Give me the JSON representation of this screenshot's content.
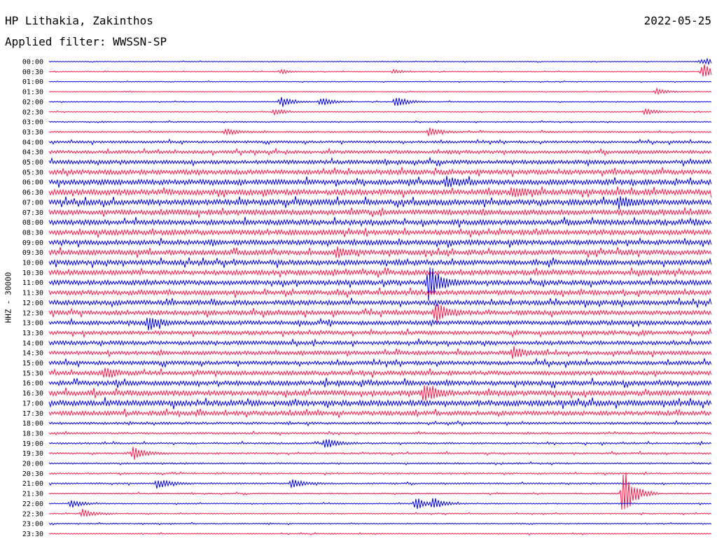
{
  "header": {
    "station": "HP Lithakia, Zakinthos",
    "date": "2022-05-25",
    "filter": "Applied filter: WWSSN-SP"
  },
  "axis": {
    "ylabel": "HHZ - 30000"
  },
  "colors": {
    "even": "#0000ee",
    "odd": "#ff1a4a"
  },
  "chart_data": {
    "type": "line",
    "title": "HP Lithakia, Zakinthos",
    "subtitle": "Applied filter: WWSSN-SP",
    "ylabel": "HHZ - 30000",
    "row_labels": [
      "00:00",
      "00:30",
      "01:00",
      "01:30",
      "02:00",
      "02:30",
      "03:00",
      "03:30",
      "04:00",
      "04:30",
      "05:00",
      "05:30",
      "06:00",
      "06:30",
      "07:00",
      "07:30",
      "08:00",
      "08:30",
      "09:00",
      "09:30",
      "10:00",
      "10:30",
      "11:00",
      "11:30",
      "12:00",
      "12:30",
      "13:00",
      "13:30",
      "14:00",
      "14:30",
      "15:00",
      "15:30",
      "16:00",
      "16:30",
      "17:00",
      "17:30",
      "18:00",
      "18:30",
      "19:00",
      "19:30",
      "20:00",
      "20:30",
      "21:00",
      "21:30",
      "22:00",
      "22:30",
      "23:00",
      "23:30"
    ],
    "noise_level": [
      0.4,
      0.4,
      0.4,
      0.4,
      0.5,
      0.5,
      0.6,
      0.8,
      1.2,
      1.6,
      2.0,
      2.4,
      2.6,
      2.8,
      2.8,
      2.6,
      2.6,
      2.6,
      2.5,
      2.5,
      2.5,
      2.5,
      2.4,
      2.4,
      2.4,
      2.3,
      2.2,
      2.0,
      2.0,
      2.0,
      2.0,
      2.2,
      2.4,
      2.6,
      2.8,
      2.2,
      1.2,
      1.0,
      0.9,
      0.9,
      0.8,
      0.8,
      0.8,
      0.7,
      0.6,
      0.6,
      0.6,
      0.6
    ],
    "events": [
      {
        "row": 0,
        "minute": 29.8,
        "amp": 3
      },
      {
        "row": 0,
        "minute": 29.5,
        "amp": 3
      },
      {
        "row": 1,
        "minute": 10.5,
        "amp": 3
      },
      {
        "row": 1,
        "minute": 15.6,
        "amp": 3
      },
      {
        "row": 1,
        "minute": 29.6,
        "amp": 12
      },
      {
        "row": 3,
        "minute": 27.5,
        "amp": 5
      },
      {
        "row": 4,
        "minute": 10.5,
        "amp": 8
      },
      {
        "row": 4,
        "minute": 12.3,
        "amp": 7
      },
      {
        "row": 4,
        "minute": 15.7,
        "amp": 9
      },
      {
        "row": 5,
        "minute": 10.2,
        "amp": 4
      },
      {
        "row": 5,
        "minute": 27.0,
        "amp": 5
      },
      {
        "row": 7,
        "minute": 8.0,
        "amp": 5
      },
      {
        "row": 7,
        "minute": 17.2,
        "amp": 6
      },
      {
        "row": 12,
        "minute": 18.0,
        "amp": 8
      },
      {
        "row": 13,
        "minute": 21.0,
        "amp": 7
      },
      {
        "row": 14,
        "minute": 25.8,
        "amp": 8
      },
      {
        "row": 19,
        "minute": 13.0,
        "amp": 6
      },
      {
        "row": 22,
        "minute": 17.2,
        "amp": 30
      },
      {
        "row": 25,
        "minute": 17.5,
        "amp": 16
      },
      {
        "row": 26,
        "minute": 4.5,
        "amp": 10
      },
      {
        "row": 29,
        "minute": 21.0,
        "amp": 8
      },
      {
        "row": 31,
        "minute": 2.5,
        "amp": 8
      },
      {
        "row": 33,
        "minute": 17.0,
        "amp": 14
      },
      {
        "row": 38,
        "minute": 12.5,
        "amp": 8
      },
      {
        "row": 39,
        "minute": 3.8,
        "amp": 10
      },
      {
        "row": 42,
        "minute": 11.0,
        "amp": 7
      },
      {
        "row": 42,
        "minute": 4.9,
        "amp": 8
      },
      {
        "row": 43,
        "minute": 26.0,
        "amp": 40
      },
      {
        "row": 44,
        "minute": 1.0,
        "amp": 6
      },
      {
        "row": 44,
        "minute": 16.6,
        "amp": 9
      },
      {
        "row": 44,
        "minute": 17.4,
        "amp": 8
      },
      {
        "row": 45,
        "minute": 1.5,
        "amp": 7
      }
    ]
  }
}
